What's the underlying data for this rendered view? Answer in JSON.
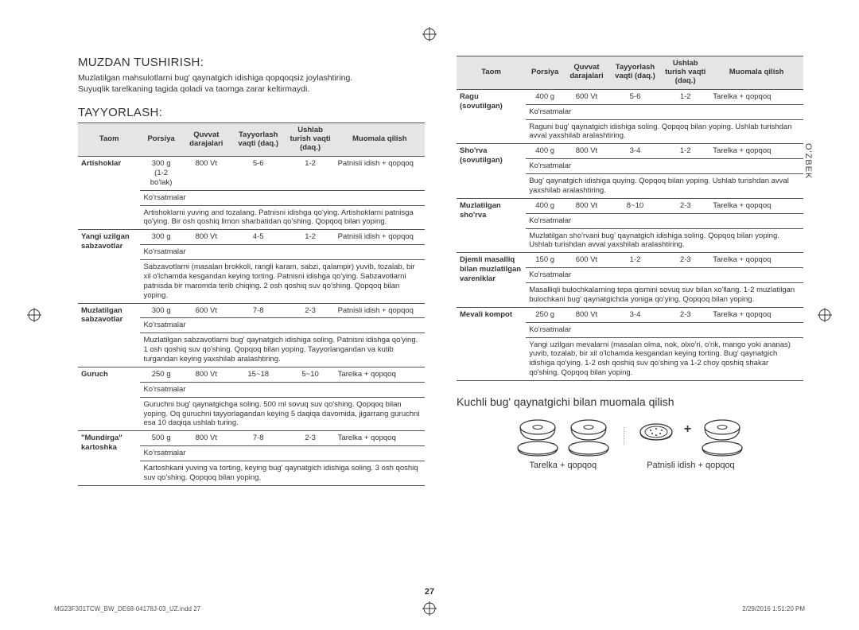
{
  "side_label": "O'ZBEK",
  "page_number": "27",
  "footer_left": "MG23F301TCW_BW_DE68-04178J-03_UZ.indd   27",
  "footer_right": "2/29/2016   1:51:20 PM",
  "left": {
    "h1": "MUZDAN TUSHIRISH:",
    "p1a": "Muzlatilgan mahsulotlarni bug' qaynatgich idishiga qopqoqsiz joylashtiring.",
    "p1b": "Suyuqlik tarelkaning tagida qoladi va taomga zarar keltirmaydi.",
    "h2": "TAYYORLASH:",
    "headers": {
      "c1": "Taom",
      "c2": "Porsiya",
      "c3": "Quvvat darajalari",
      "c4": "Tayyorlash vaqti (daq.)",
      "c5": "Ushlab turish vaqti (daq.)",
      "c6": "Muomala qilish"
    },
    "rows": [
      {
        "name": "Artishoklar",
        "portion": "300 g\n(1-2 bo'lak)",
        "power": "800 Vt",
        "cook": "5-6",
        "hold": "1-2",
        "serve": "Patnisli idish + qopqoq",
        "notes_head": "Ko'rsatmalar",
        "notes": "Artishoklarni yuving and tozalang. Patnisni idishga qo'ying. Artishoklarni patnisga qo'ying. Bir osh qoshiq limon sharbatidan qo'shing. Qopqoq bilan yoping."
      },
      {
        "name": "Yangi uzilgan sabzavotlar",
        "portion": "300 g",
        "power": "800 Vt",
        "cook": "4-5",
        "hold": "1-2",
        "serve": "Patnisli idish + qopqoq",
        "notes_head": "Ko'rsatmalar",
        "notes": "Sabzavotlarni (masalan brokkoli, rangli karam, sabzi, qalampir) yuvib, tozalab, bir xil o'lchamda kesgandan keying torting. Patnisni idishga qo'ying. Sabzavotlarni patnisda bir maromda terib chiqing. 2 osh qoshiq suv qo'shing. Qopqoq bilan yoping."
      },
      {
        "name": "Muzlatilgan sabzavotlar",
        "portion": "300 g",
        "power": "600 Vt",
        "cook": "7-8",
        "hold": "2-3",
        "serve": "Patnisli idish + qopqoq",
        "notes_head": "Ko'rsatmalar",
        "notes": "Muzlatilgan sabzavotlarni bug' qaynatgich idishiga soling. Patnisni idishga qo'ying. 1 osh qoshiq suv qo'shing. Qopqoq bilan yoping. Tayyorlangandan va kutib turgandan keying yaxshilab aralashtiring."
      },
      {
        "name": "Guruch",
        "portion": "250 g",
        "power": "800 Vt",
        "cook": "15~18",
        "hold": "5~10",
        "serve": "Tarelka + qopqoq",
        "notes_head": "Ko'rsatmalar",
        "notes": "Guruchni bug' qaynatgichga soling. 500 ml sovuq suv qo'shing. Qopqoq bilan yoping. Oq guruchni tayyorlagandan keying 5 daqiqa davomida, jigarrang guruchni esa 10 daqiqa ushlab turing."
      },
      {
        "name": "\"Mundirga\" kartoshka",
        "portion": "500 g",
        "power": "800 Vt",
        "cook": "7-8",
        "hold": "2-3",
        "serve": "Tarelka + qopqoq",
        "notes_head": "Ko'rsatmalar",
        "notes": "Kartoshkani yuving va torting, keying bug' qaynatgich idishiga soling. 3 osh qoshiq suv qo'shing. Qopqoq bilan yoping."
      }
    ]
  },
  "right": {
    "headers": {
      "c1": "Taom",
      "c2": "Porsiya",
      "c3": "Quvvat darajalari",
      "c4": "Tayyorlash vaqti (daq.)",
      "c5": "Ushlab turish vaqti (daq.)",
      "c6": "Muomala qilish"
    },
    "rows": [
      {
        "name": "Ragu (sovutilgan)",
        "portion": "400 g",
        "power": "600 Vt",
        "cook": "5-6",
        "hold": "1-2",
        "serve": "Tarelka + qopqoq",
        "notes_head": "Ko'rsatmalar",
        "notes": "Raguni bug' qaynatgich idishiga soling. Qopqoq bilan yoping. Ushlab turishdan avval yaxshilab aralashtiring."
      },
      {
        "name": "Sho'rva (sovutilgan)",
        "portion": "400 g",
        "power": "800 Vt",
        "cook": "3-4",
        "hold": "1-2",
        "serve": "Tarelka + qopqoq",
        "notes_head": "Ko'rsatmalar",
        "notes": "Bug' qaynatgich idishiga quying. Qopqoq bilan yoping. Ushlab turishdan avval yaxshilab aralashtiring."
      },
      {
        "name": "Muzlatilgan sho'rva",
        "portion": "400 g",
        "power": "800 Vt",
        "cook": "8~10",
        "hold": "2-3",
        "serve": "Tarelka + qopqoq",
        "notes_head": "Ko'rsatmalar",
        "notes": "Muzlatilgan sho'rvani bug' qaynatgich idishiga soling. Qopqoq bilan yoping. Ushlab turishdan avval yaxshilab aralashtiring."
      },
      {
        "name": "Djemli masalliq bilan muzlatilgan vareniklar",
        "portion": "150 g",
        "power": "600 Vt",
        "cook": "1-2",
        "hold": "2-3",
        "serve": "Tarelka + qopqoq",
        "notes_head": "Ko'rsatmalar",
        "notes": "Masalliqli bulochkalarning tepa qismini sovuq suv bilan xo'llang. 1-2 muzlatilgan bulochkani bug' qaynatgichda yoniga qo'ying. Qopqoq bilan yoping."
      },
      {
        "name": "Mevali kompot",
        "portion": "250 g",
        "power": "800 Vt",
        "cook": "3-4",
        "hold": "2-3",
        "serve": "Tarelka + qopqoq",
        "notes_head": "Ko'rsatmalar",
        "notes": "Yangi uzilgan mevalarni (masalan olma, nok, olxo'ri, o'rik, mango yoki ananas) yuvib, tozalab, bir xil o'lchamda kesgandan keying torting. Bug' qaynatgich idishiga qo'ying. 1-2 osh qoshiq suv qo'shing va 1-2 choy qoshiq shakar qo'shing. Qopqoq bilan yoping."
      }
    ],
    "sub": "Kuchli bug' qaynatgichi bilan muomala qilish",
    "cap1": "Tarelka + qopqoq",
    "cap2": "Patnisli idish + qopqoq"
  }
}
